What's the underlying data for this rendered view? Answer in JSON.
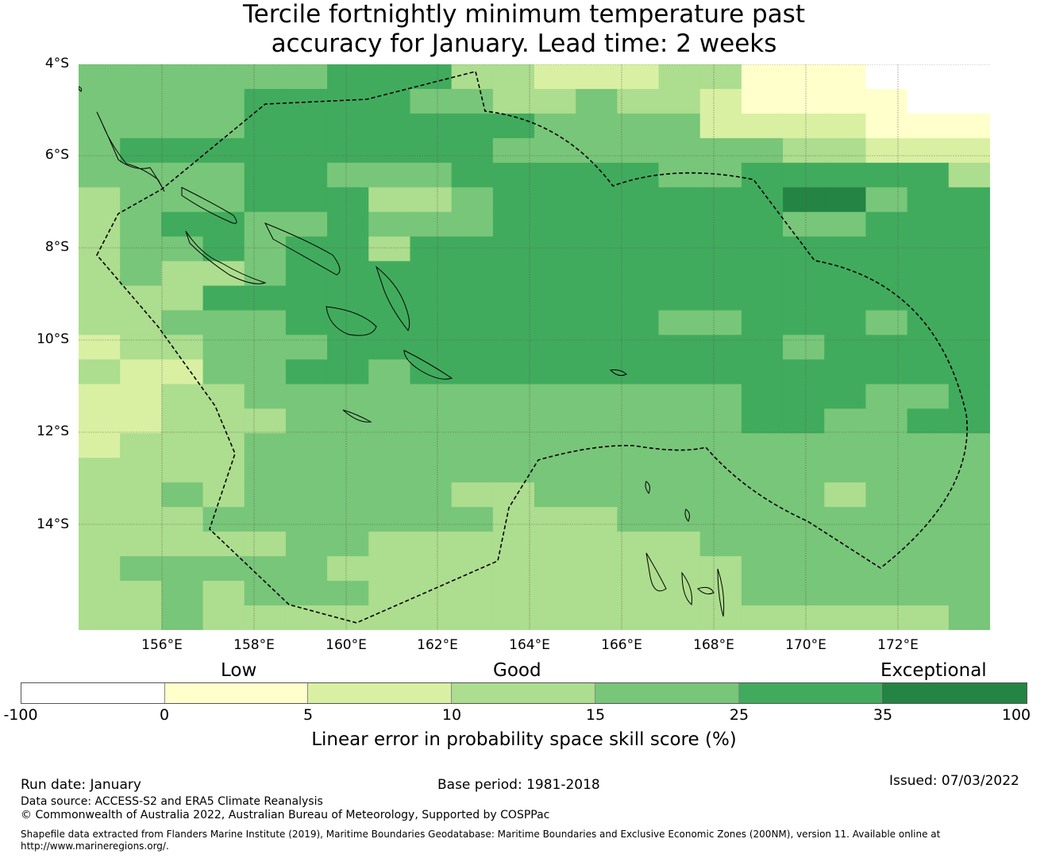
{
  "title_line1": "Tercile fortnightly minimum temperature past",
  "title_line2": "accuracy for January. Lead time: 2 weeks",
  "map": {
    "lat_labels": [
      "4°S",
      "6°S",
      "8°S",
      "10°S",
      "12°S",
      "14°S"
    ],
    "lon_labels": [
      "156°E",
      "158°E",
      "160°E",
      "162°E",
      "164°E",
      "166°E",
      "168°E",
      "170°E",
      "172°E"
    ],
    "palette": {
      "0": "#ffffff",
      "1": "#ffffcc",
      "2": "#d9f0a3",
      "3": "#addd8e",
      "4": "#78c679",
      "5": "#41ab5d",
      "6": "#238443"
    },
    "grid_rows": [
      "4444445553322233111000",
      "4444555544334332111100",
      "4444555555544442222111",
      "4555555555444444433222",
      "4444554445555544555553",
      "3444555334555555566455",
      "3455445444555555544555",
      "3445455355555555555555",
      "3433455555555555555555",
      "3335555555555555555555",
      "3344455555555544555455",
      "2334445555555555545555",
      "3224455455555555555555",
      "2233444444444444555445",
      "2233344444444444554455",
      "2333444444444444444444",
      "3333444444444444444444",
      "3343444443344444443444",
      "3334444444333444444444",
      "3333344333333334444444",
      "3444443333333333444444",
      "3343444333333333444444",
      "3343333333333333333334"
    ],
    "eez_notes": "Solomon Islands / Vanuatu boundaries"
  },
  "legend": {
    "categories": [
      "Low",
      "Good",
      "Exceptional"
    ],
    "colors": [
      "#ffffff",
      "#ffffcc",
      "#d9f0a3",
      "#addd8e",
      "#78c679",
      "#41ab5d",
      "#238443"
    ],
    "ticks": [
      "-100",
      "0",
      "5",
      "10",
      "15",
      "25",
      "35",
      "100"
    ],
    "label": "Linear error in probability space skill score (%)"
  },
  "footer": {
    "run_date": "Run date: January",
    "base_period": "Base period: 1981-2018",
    "issued": "Issued: 07/03/2022",
    "data_source": "Data source: ACCESS-S2 and ERA5 Climate Reanalysis",
    "copyright": "© Commonwealth of Australia 2022, Australian Bureau of Meteorology, Supported by COSPPac",
    "shapefile_line1": "Shapefile data extracted from Flanders Marine Institute (2019), Maritime Boundaries Geodatabase: Maritime Boundaries and Exclusive Economic Zones (200NM), version 11. Available online at",
    "shapefile_line2": "http://www.marineregions.org/."
  }
}
